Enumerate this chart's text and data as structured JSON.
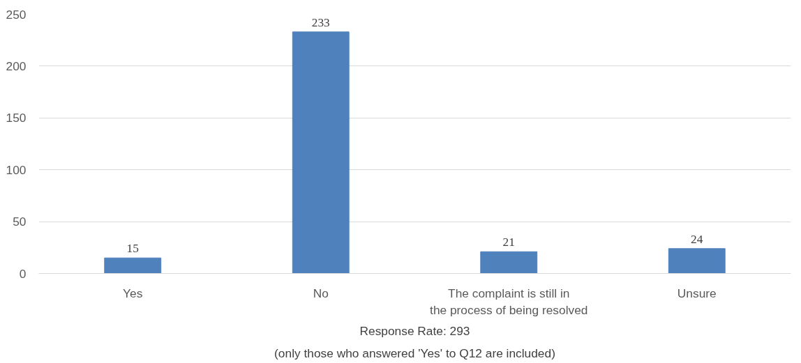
{
  "chart_data": {
    "type": "bar",
    "categories": [
      "Yes",
      "No",
      "The complaint is still in the process of being resolved",
      "Unsure"
    ],
    "values": [
      15,
      233,
      21,
      24
    ],
    "color": "#4f81bd",
    "ylim": [
      0,
      250
    ],
    "yticks": [
      0,
      50,
      100,
      150,
      200,
      250
    ],
    "grid": "y",
    "data_labels": true,
    "annotations": [
      "Response Rate: 293",
      "(only those who answered 'Yes' to Q12 are included)"
    ]
  }
}
